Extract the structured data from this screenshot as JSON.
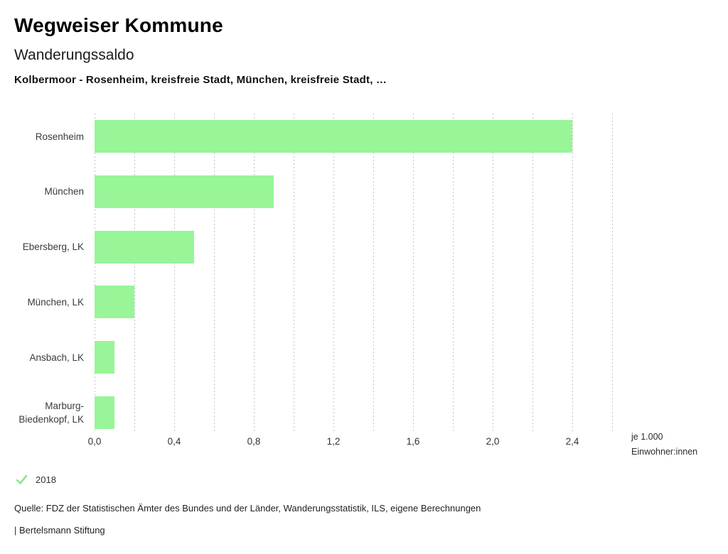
{
  "header": {
    "title": "Wegweiser Kommune",
    "subtitle": "Wanderungssaldo",
    "selection": "Kolbermoor - Rosenheim, kreisfreie Stadt, München, kreisfreie Stadt, …"
  },
  "chart_data": {
    "type": "bar",
    "orientation": "horizontal",
    "title": "Wanderungssaldo",
    "categories": [
      "Rosenheim",
      "München",
      "Ebersberg, LK",
      "München, LK",
      "Ansbach, LK",
      "Marburg-Biedenkopf, LK"
    ],
    "series": [
      {
        "name": "2018",
        "values": [
          2.4,
          0.9,
          0.5,
          0.2,
          0.1,
          0.1
        ]
      }
    ],
    "xlabel": "je 1.000 Einwohner:innen",
    "ylabel": "",
    "xlim": [
      0,
      2.6
    ],
    "grid": true,
    "gridline_step": 0.2,
    "tick_values": [
      0.0,
      0.4,
      0.8,
      1.2,
      1.6,
      2.0,
      2.4
    ],
    "tick_labels": [
      "0,0",
      "0,4",
      "0,8",
      "1,2",
      "1,6",
      "2,0",
      "2,4"
    ],
    "legend_position": "bottom-left",
    "bar_color": "#98f598",
    "grid_color": "#c6c6c6"
  },
  "axis_unit": {
    "line1": "je 1.000",
    "line2": "Einwohner:innen"
  },
  "legend": {
    "label": "2018",
    "check_color": "#8be88b"
  },
  "footer": {
    "source": "Quelle: FDZ der Statistischen Ämter des Bundes und der Länder, Wanderungsstatistik, ILS, eigene Berechnungen",
    "attribution": "| Bertelsmann Stiftung"
  },
  "colors": {
    "bar": "#98f598",
    "grid": "#c6c6c6",
    "text": "#333333"
  }
}
